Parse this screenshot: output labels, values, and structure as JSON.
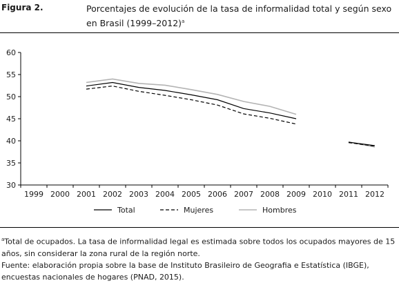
{
  "figure": {
    "label": "Figura 2.",
    "title": "Porcentajes de evolución de la tasa de informalidad total y según sexo en Brasil (1999–2012)",
    "title_sup": "a"
  },
  "notes": {
    "note_sup": "a",
    "note": "Total de ocupados. La tasa de informalidad legal es estimada sobre todos los ocupados mayores de 15 años, sin considerar la zona rural de la región norte.",
    "source": "Fuente: elaboración propia sobre la base de Instituto Brasileiro de Geografia e Estatística (IBGE), encuestas nacionales de hogares (PNAD, 2015)."
  },
  "colors": {
    "total": "#000000",
    "mujeres": "#000000",
    "hombres": "#b3b3b3",
    "axis": "#000000"
  },
  "chart_data": {
    "type": "line",
    "categories": [
      "1999",
      "2000",
      "2001",
      "2002",
      "2003",
      "2004",
      "2005",
      "2006",
      "2007",
      "2008",
      "2009",
      "2010",
      "2011",
      "2012"
    ],
    "ylim": [
      30,
      60
    ],
    "yticks": [
      30,
      35,
      40,
      45,
      50,
      55,
      60
    ],
    "legend_position": "bottom",
    "series": [
      {
        "name": "Total",
        "style": "solid",
        "values": [
          null,
          null,
          52.4,
          53.2,
          52.1,
          51.4,
          50.4,
          49.3,
          47.3,
          46.3,
          45.0,
          null,
          39.7,
          38.9
        ]
      },
      {
        "name": "Mujeres",
        "style": "dashed",
        "values": [
          null,
          null,
          51.7,
          52.4,
          51.2,
          50.3,
          49.3,
          48.1,
          46.1,
          45.1,
          43.8,
          null,
          39.6,
          38.8
        ]
      },
      {
        "name": "Hombres",
        "style": "solid-gray",
        "values": [
          null,
          null,
          53.2,
          54.0,
          53.0,
          52.6,
          51.6,
          50.5,
          48.9,
          47.8,
          46.0,
          null,
          39.7,
          38.6
        ]
      }
    ]
  }
}
